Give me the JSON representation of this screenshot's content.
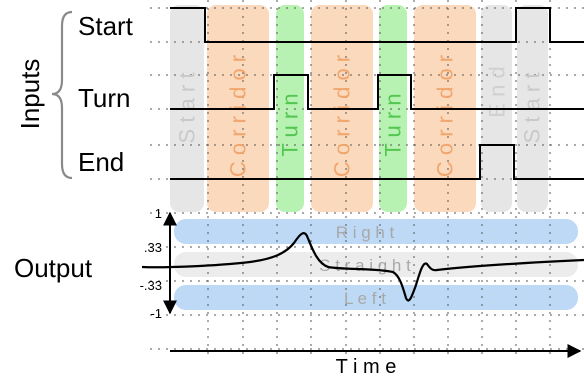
{
  "inputs_group": {
    "label": "Inputs",
    "signals": [
      {
        "name": "Start",
        "key": "start"
      },
      {
        "name": "Turn",
        "key": "turn"
      },
      {
        "name": "End",
        "key": "end"
      }
    ]
  },
  "phases": [
    {
      "label": "S t a r t",
      "kind": "start"
    },
    {
      "label": "C o r r i d o r",
      "kind": "corridor"
    },
    {
      "label": "T u r n",
      "kind": "turn"
    },
    {
      "label": "C o r r i d o r",
      "kind": "corridor"
    },
    {
      "label": "T u r n",
      "kind": "turn"
    },
    {
      "label": "C o r r i d o r",
      "kind": "corridor"
    },
    {
      "label": "E n d",
      "kind": "end"
    },
    {
      "label": "S t a r t",
      "kind": "start"
    }
  ],
  "output": {
    "label": "Output",
    "ticks": [
      "1",
      ".33",
      "-.33",
      "-1"
    ],
    "bands": [
      {
        "label": "R i g h t",
        "kind": "right"
      },
      {
        "label": "S t r a i g h t",
        "kind": "straight"
      },
      {
        "label": "L e f t",
        "kind": "left"
      }
    ]
  },
  "x_axis": {
    "label": "T i m e"
  },
  "colors": {
    "start": "#e6e6e6",
    "corridor": "#fbd9bd",
    "turn": "#b7f2b3",
    "end": "#e6e6e6",
    "band_blue": "#bdd9f5",
    "band_gray": "#ececec",
    "start_text": "#c9c9c9",
    "corridor_text": "#f0a66e",
    "turn_text": "#52c64e",
    "end_text": "#d0d0d0",
    "band_text": "#a8a8a8"
  }
}
